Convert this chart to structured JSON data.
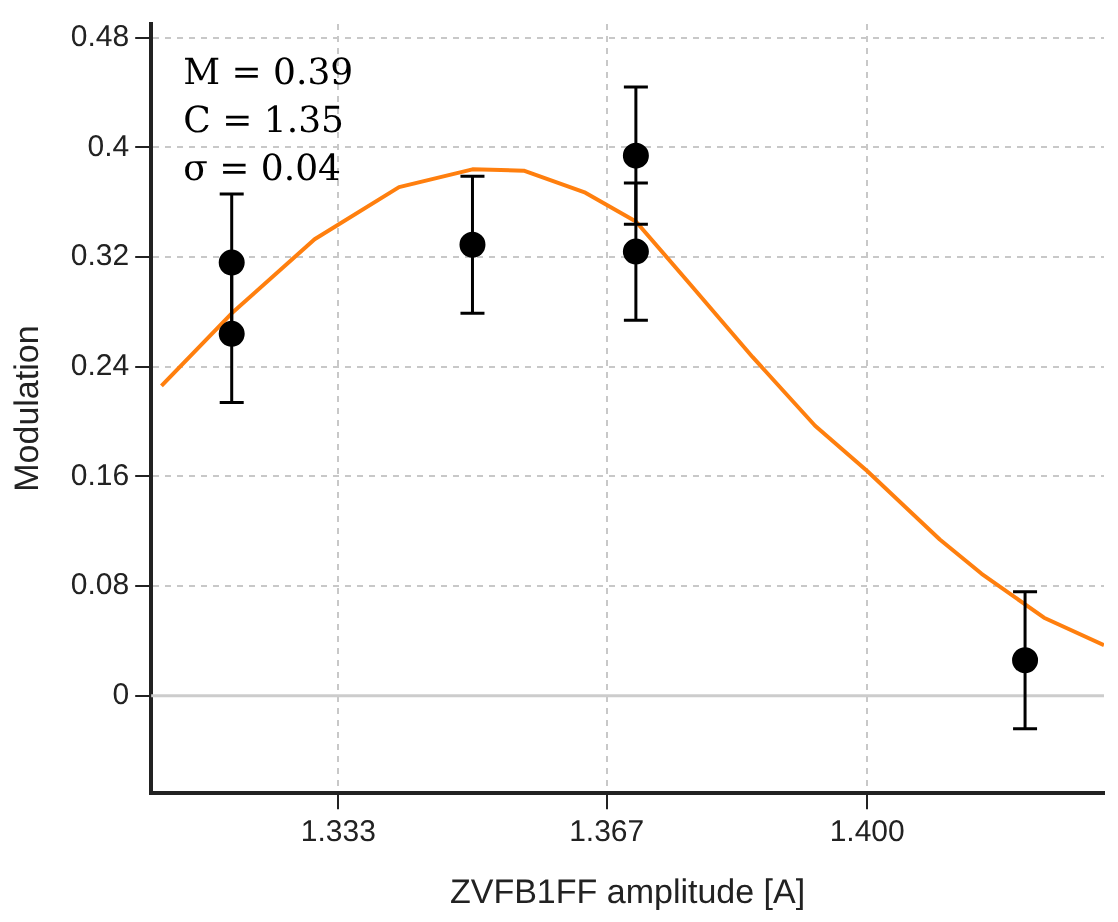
{
  "chart_data": {
    "type": "scatter",
    "xlabel": "ZVFB1FF amplitude [A]",
    "ylabel": "Modulation",
    "xlim": [
      1.3093,
      1.43
    ],
    "xticks": [
      {
        "value": 1.333,
        "label": "1.333"
      },
      {
        "value": 1.367,
        "label": "1.367"
      },
      {
        "value": 1.4,
        "label": "1.400"
      }
    ],
    "ylim": [
      -0.071,
      0.49
    ],
    "yticks": [
      0,
      0.08,
      0.16,
      0.24,
      0.32,
      0.4,
      0.48
    ],
    "grid": true,
    "legend": false,
    "marker": "circle",
    "annotations": [
      "M = 0.39",
      "C = 1.35",
      "σ = 0.04"
    ],
    "ref_lines": [
      {
        "axis": "y",
        "value": 0,
        "color": "#cccccc"
      }
    ],
    "series": [
      {
        "type": "scatter",
        "color": "#000000",
        "x": [
          1.3195,
          1.3195,
          1.35,
          1.3707,
          1.3707,
          1.42
        ],
        "values": [
          0.316,
          0.264,
          0.329,
          0.394,
          0.324,
          0.026
        ],
        "errors": [
          0.05,
          0.05,
          0.05,
          0.05,
          0.05,
          0.05
        ]
      },
      {
        "type": "line",
        "color": "#ff7f0e",
        "marker": "none",
        "x": [
          1.3106,
          1.3195,
          1.33,
          1.3407,
          1.35,
          1.3565,
          1.3643,
          1.3707,
          1.3776,
          1.3855,
          1.3934,
          1.4,
          1.4092,
          1.4145,
          1.4224,
          1.43
        ],
        "values": [
          0.226,
          0.279,
          0.333,
          0.371,
          0.384,
          0.383,
          0.367,
          0.346,
          0.3,
          0.247,
          0.197,
          0.164,
          0.114,
          0.089,
          0.057,
          0.037
        ]
      }
    ]
  }
}
